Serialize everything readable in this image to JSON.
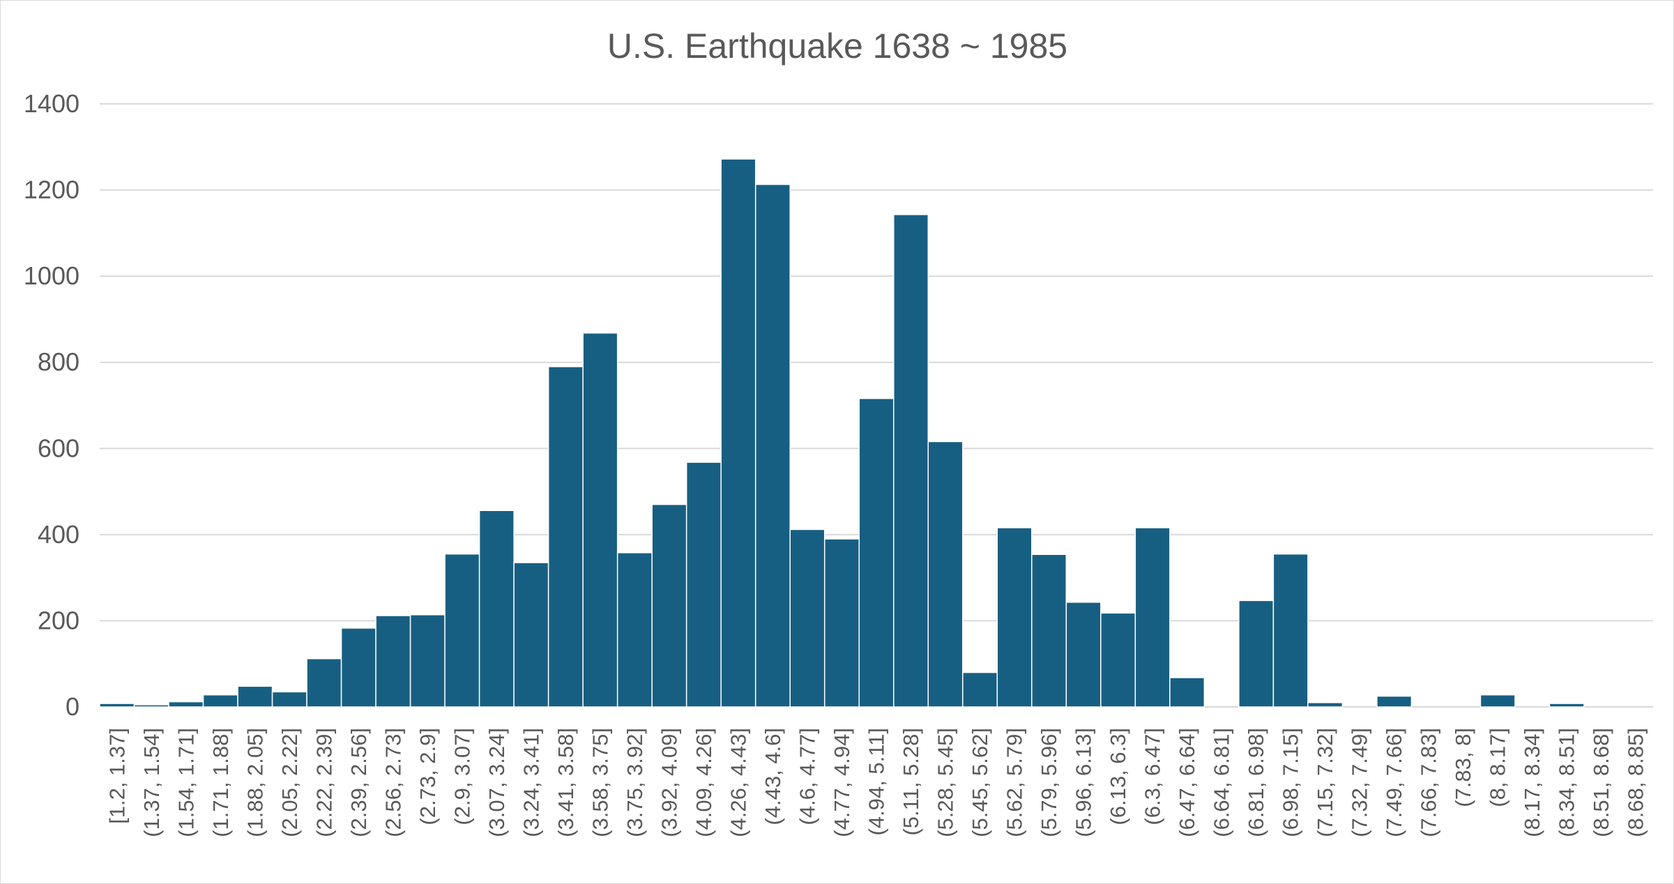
{
  "colors": {
    "bar": "#175f82",
    "bar_border": "#ffffff",
    "grid": "#d9d9d9",
    "text": "#595959",
    "background": "#ffffff"
  },
  "chart_data": {
    "type": "bar",
    "title": "U.S. Earthquake 1638 ~ 1985",
    "xlabel": "",
    "ylabel": "",
    "ylim": [
      0,
      1400
    ],
    "yticks": [
      "0",
      "200",
      "400",
      "600",
      "800",
      "1000",
      "1200",
      "1400"
    ],
    "grid": true,
    "legend": "none",
    "categories": [
      "[1.2, 1.37]",
      "(1.37, 1.54]",
      "(1.54, 1.71]",
      "(1.71, 1.88]",
      "(1.88, 2.05]",
      "(2.05, 2.22]",
      "(2.22, 2.39]",
      "(2.39, 2.56]",
      "(2.56, 2.73]",
      "(2.73, 2.9]",
      "(2.9, 3.07]",
      "(3.07, 3.24]",
      "(3.24, 3.41]",
      "(3.41, 3.58]",
      "(3.58, 3.75]",
      "(3.75, 3.92]",
      "(3.92, 4.09]",
      "(4.09, 4.26]",
      "(4.26, 4.43]",
      "(4.43, 4.6]",
      "(4.6, 4.77]",
      "(4.77, 4.94]",
      "(4.94, 5.11]",
      "(5.11, 5.28]",
      "(5.28, 5.45]",
      "(5.45, 5.62]",
      "(5.62, 5.79]",
      "(5.79, 5.96]",
      "(5.96, 6.13]",
      "(6.13, 6.3]",
      "(6.3, 6.47]",
      "(6.47, 6.64]",
      "(6.64, 6.81]",
      "(6.81, 6.98]",
      "(6.98, 7.15]",
      "(7.15, 7.32]",
      "(7.32, 7.49]",
      "(7.49, 7.66]",
      "(7.66, 7.83]",
      "(7.83, 8]",
      "(8, 8.17]",
      "(8.17, 8.34]",
      "(8.34, 8.51]",
      "(8.51, 8.68]",
      "(8.68, 8.85]"
    ],
    "values": [
      8,
      5,
      12,
      28,
      48,
      35,
      112,
      183,
      212,
      214,
      355,
      456,
      335,
      790,
      868,
      358,
      470,
      568,
      1272,
      1213,
      412,
      390,
      716,
      1143,
      616,
      80,
      416,
      354,
      243,
      218,
      416,
      68,
      0,
      247,
      355,
      10,
      0,
      25,
      0,
      0,
      28,
      0,
      8,
      0,
      0
    ]
  }
}
